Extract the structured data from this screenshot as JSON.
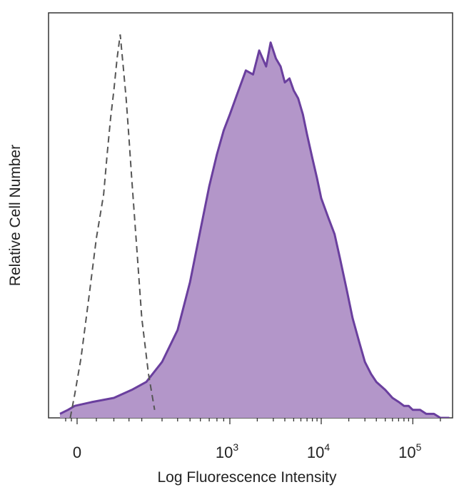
{
  "chart_data": {
    "type": "area",
    "title": "",
    "xlabel": "Log Fluorescence Intensity",
    "ylabel": "Relative Cell Number",
    "x_scale": "biexponential",
    "xlim": [
      -150,
      250000
    ],
    "ylim": [
      0,
      100
    ],
    "grid": false,
    "legend": "none",
    "x_ticks": [
      {
        "value": 0,
        "base": "0",
        "exp": ""
      },
      {
        "value": 1000,
        "base": "10",
        "exp": "3"
      },
      {
        "value": 10000,
        "base": "10",
        "exp": "4"
      },
      {
        "value": 100000,
        "base": "10",
        "exp": "5"
      }
    ],
    "series": [
      {
        "style": "dashed",
        "color": "#555555",
        "x": [
          -60,
          -20,
          10,
          30,
          50,
          70,
          80,
          90,
          100,
          110,
          120,
          130,
          140,
          150,
          160,
          180,
          200,
          230,
          260
        ],
        "y": [
          0,
          6,
          15,
          30,
          45,
          56,
          66,
          75,
          82,
          90,
          96,
          88,
          80,
          70,
          60,
          42,
          25,
          11,
          2
        ]
      },
      {
        "style": "filled",
        "color": "#6a3f9e",
        "fill": "#b396c9",
        "x": [
          -150,
          -80,
          -20,
          40,
          100,
          160,
          220,
          300,
          400,
          500,
          600,
          700,
          800,
          900,
          1000,
          1200,
          1500,
          1800,
          2100,
          2500,
          2800,
          3200,
          3600,
          4000,
          4500,
          5000,
          5600,
          6300,
          7000,
          8000,
          9000,
          10000,
          12000,
          14000,
          16000,
          19000,
          22000,
          26000,
          30000,
          35000,
          40000,
          50000,
          60000,
          70000,
          80000,
          90000,
          100000,
          120000,
          140000,
          170000,
          200000,
          250000
        ],
        "y": [
          1,
          2,
          3,
          4,
          5,
          7,
          9,
          14,
          22,
          34,
          47,
          58,
          66,
          72,
          76,
          81,
          87,
          86,
          92,
          88,
          94,
          90,
          88,
          84,
          85,
          82,
          80,
          76,
          71,
          65,
          60,
          55,
          50,
          46,
          40,
          32,
          25,
          19,
          14,
          11,
          9,
          7,
          5,
          4,
          3,
          3,
          2,
          2,
          1,
          1,
          0,
          0
        ]
      }
    ]
  }
}
